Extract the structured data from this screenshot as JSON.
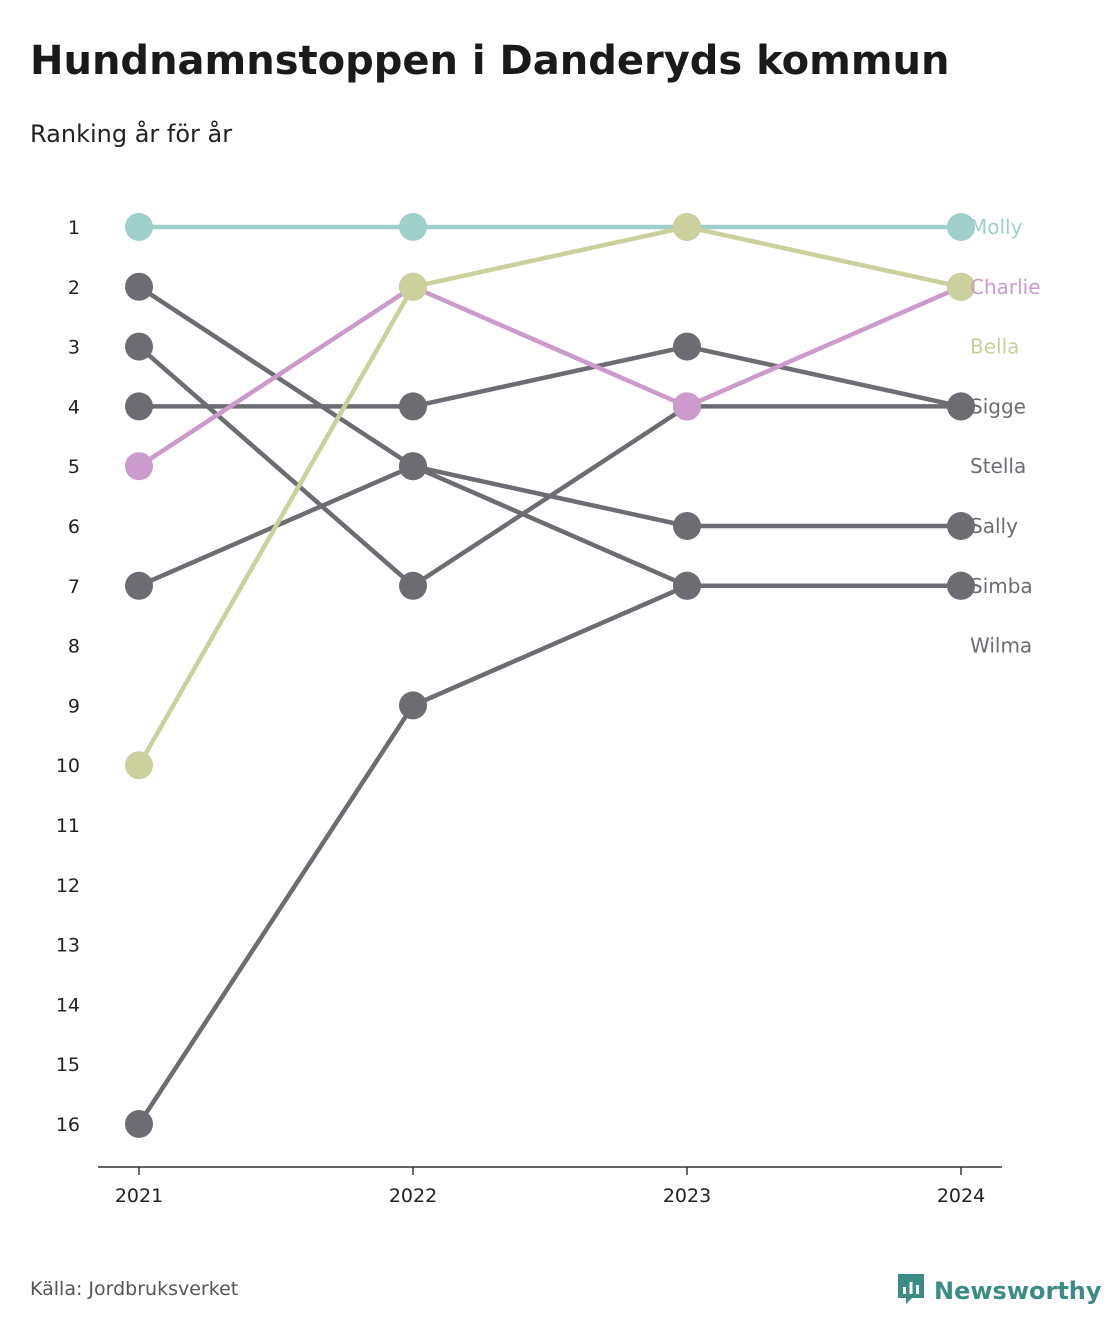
{
  "title": "Hundnamnstoppen i Danderyds kommun",
  "subtitle": "Ranking år för år",
  "source": "Källa: Jordbruksverket",
  "brand": "Newsworthy",
  "chart_data": {
    "type": "line",
    "x": [
      "2021",
      "2022",
      "2023",
      "2024"
    ],
    "y_ticks": [
      "1",
      "2",
      "3",
      "4",
      "5",
      "6",
      "7",
      "8",
      "9",
      "10",
      "11",
      "12",
      "13",
      "14",
      "15",
      "16"
    ],
    "ylim": [
      1,
      16
    ],
    "y_reversed": true,
    "grid": false,
    "legend": "end-labels-right",
    "series": [
      {
        "name": "Molly",
        "color": "#9ecfcb",
        "values": [
          1,
          1,
          1,
          1
        ]
      },
      {
        "name": "Charlie",
        "color": "#cc9acc",
        "values": [
          5,
          2,
          4,
          2
        ]
      },
      {
        "name": "Bella",
        "color": "#cbd09c",
        "values": [
          10,
          2,
          1,
          2
        ]
      },
      {
        "name": "Sigge",
        "color": "#6d6c72",
        "values": [
          4,
          4,
          3,
          4
        ]
      },
      {
        "name": "Stella",
        "color": "#6d6c72",
        "values": [
          2,
          5,
          7,
          7
        ]
      },
      {
        "name": "Sally",
        "color": "#6d6c72",
        "values": [
          7,
          5,
          6,
          6
        ]
      },
      {
        "name": "Simba",
        "color": "#6d6c72",
        "values": [
          16,
          9,
          7,
          7
        ]
      },
      {
        "name": "Wilma",
        "color": "#6d6c72",
        "values": [
          3,
          7,
          4,
          4
        ]
      }
    ]
  }
}
